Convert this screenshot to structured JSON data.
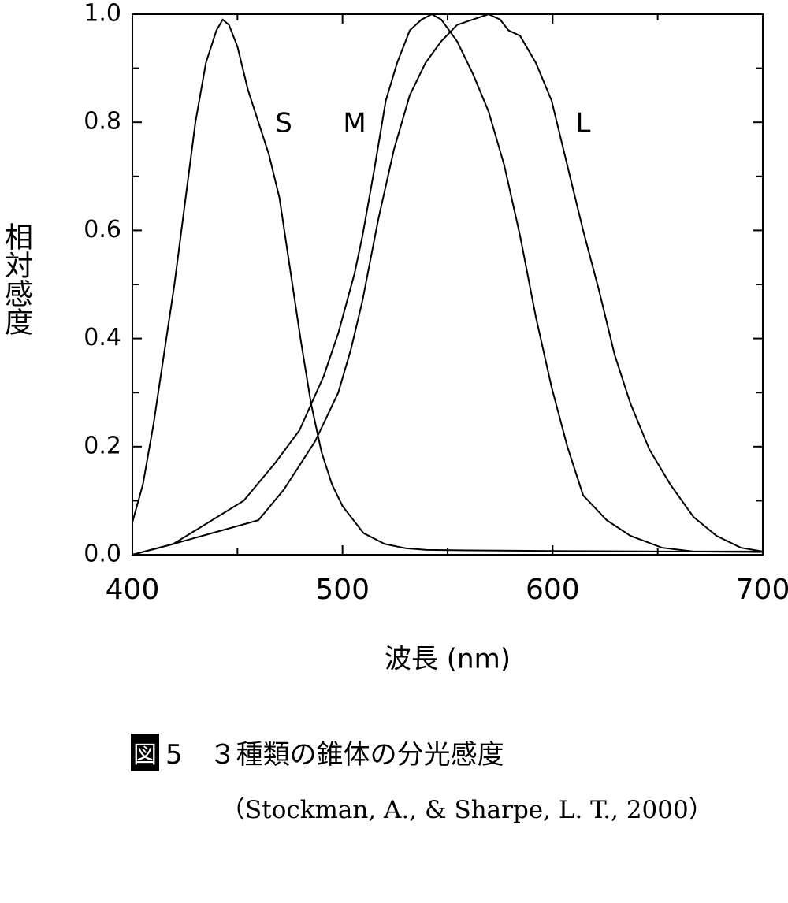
{
  "chart_data": {
    "type": "line",
    "xlabel": "波長 (nm)",
    "ylabel": "相対感度",
    "xlim": [
      400,
      700
    ],
    "xticks": [
      400,
      500,
      600,
      700
    ],
    "xticks_minor": [
      450,
      550,
      650
    ],
    "ylim": [
      0,
      1
    ],
    "yticks": [
      {
        "value": 0,
        "label": "0.0"
      },
      0.2,
      0.4,
      0.6,
      0.8,
      {
        "value": 1,
        "label": "1.0"
      }
    ],
    "yticks_minor": [
      0.1,
      0.3,
      0.5,
      0.7,
      0.9
    ],
    "grid": false,
    "series": [
      {
        "name": "S",
        "color": "#000000",
        "x": [
          400,
          405,
          410,
          415,
          420,
          425,
          430,
          435,
          440,
          443,
          446,
          450,
          455,
          460,
          465,
          470,
          475,
          480,
          485,
          490,
          495,
          500,
          510,
          520,
          530,
          540,
          560,
          600,
          650,
          700
        ],
        "values": [
          0.06,
          0.13,
          0.24,
          0.37,
          0.5,
          0.65,
          0.8,
          0.91,
          0.97,
          0.99,
          0.98,
          0.94,
          0.86,
          0.8,
          0.74,
          0.66,
          0.53,
          0.4,
          0.28,
          0.19,
          0.13,
          0.09,
          0.04,
          0.02,
          0.012,
          0.009,
          0.008,
          0.007,
          0.006,
          0.006
        ]
      },
      {
        "name": "M",
        "color": "#000000",
        "x": [
          400,
          419.5,
          453,
          468,
          479.5,
          491,
          498,
          505.7,
          509.5,
          515,
          520.6,
          526,
          532,
          537.6,
          542.5,
          547,
          554.5,
          562,
          569.5,
          577,
          584.5,
          592,
          599.5,
          607,
          614.5,
          625.7,
          637,
          652,
          667,
          700
        ],
        "values": [
          0,
          0.02,
          0.1,
          0.17,
          0.23,
          0.33,
          0.41,
          0.52,
          0.59,
          0.71,
          0.84,
          0.91,
          0.97,
          0.99,
          1,
          0.99,
          0.95,
          0.89,
          0.82,
          0.72,
          0.59,
          0.44,
          0.31,
          0.2,
          0.11,
          0.064,
          0.035,
          0.013,
          0.006,
          0.005
        ]
      },
      {
        "name": "L",
        "color": "#000000",
        "x": [
          400,
          419.5,
          460,
          472,
          487,
          498,
          504,
          509.5,
          517,
          524.5,
          532,
          539.5,
          547,
          554.5,
          562,
          569.5,
          575,
          579,
          584.5,
          592,
          599.5,
          607,
          614.5,
          622,
          629.5,
          637,
          646,
          656,
          667,
          678,
          689.5,
          700
        ],
        "values": [
          0,
          0.02,
          0.064,
          0.12,
          0.21,
          0.3,
          0.38,
          0.47,
          0.62,
          0.75,
          0.85,
          0.91,
          0.95,
          0.98,
          0.99,
          1,
          0.99,
          0.97,
          0.96,
          0.91,
          0.84,
          0.72,
          0.6,
          0.49,
          0.37,
          0.28,
          0.195,
          0.13,
          0.07,
          0.035,
          0.013,
          0.006
        ]
      }
    ],
    "figure_label": "図",
    "caption": "5　３種類の錐体の分光感度",
    "source": "（Stockman, A., & Sharpe, L. T., 2000）"
  }
}
